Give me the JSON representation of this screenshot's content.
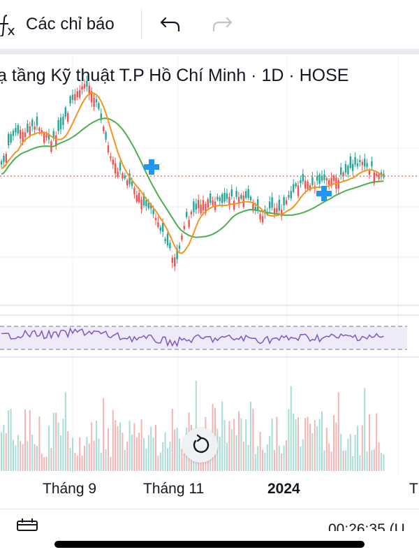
{
  "toolbar": {
    "indicators_label": "Các chỉ báo",
    "fx_icon": "function-fx-icon",
    "undo_icon": "undo-arrow-icon",
    "redo_icon": "redo-arrow-icon"
  },
  "chart": {
    "title": "ạ tầng Kỹ thuật T.P Hồ Chí Minh · 1D · HOSE",
    "x_axis_labels": [
      "Tháng 9",
      "Tháng 11",
      "2024",
      "T"
    ],
    "reset_icon": "reset-rotate-icon"
  },
  "footer": {
    "calendar_icon": "calendar-icon",
    "time": "00:26:35 (U"
  },
  "colors": {
    "up": "#26a69a",
    "down": "#ef5350",
    "ma_short": "#f7931e",
    "ma_long": "#4caf50",
    "rsi": "#7e57c2",
    "marker": "#2196f3"
  }
}
